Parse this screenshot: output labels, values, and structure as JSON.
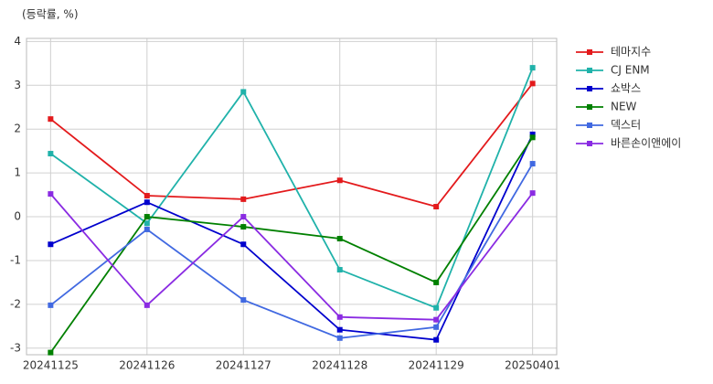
{
  "chart_data": {
    "type": "line",
    "y_label": "(등락률, %)",
    "categories": [
      "20241125",
      "20241126",
      "20241127",
      "20241128",
      "20241129",
      "20250401"
    ],
    "ylim": [
      -3.15,
      4.07
    ],
    "yticks": [
      -3,
      -2,
      -1,
      0,
      1,
      2,
      3,
      4
    ],
    "grid": true,
    "legend": "outside-right",
    "series": [
      {
        "name": "테마지수",
        "color": "#e31a1c",
        "values": [
          2.23,
          0.48,
          0.4,
          0.83,
          0.23,
          3.04
        ]
      },
      {
        "name": "CJ ENM",
        "color": "#20b2aa",
        "values": [
          1.44,
          -0.15,
          2.85,
          -1.21,
          -2.08,
          3.4
        ]
      },
      {
        "name": "쇼박스",
        "color": "#0000cd",
        "values": [
          -0.63,
          0.33,
          -0.63,
          -2.58,
          -2.81,
          1.88
        ]
      },
      {
        "name": "NEW",
        "color": "#008000",
        "values": [
          -3.1,
          0.0,
          -0.23,
          -0.5,
          -1.5,
          1.81
        ]
      },
      {
        "name": "덱스터",
        "color": "#4169e1",
        "values": [
          -2.02,
          -0.29,
          -1.9,
          -2.77,
          -2.52,
          1.21
        ]
      },
      {
        "name": "바른손이앤에이",
        "color": "#8a2be2",
        "values": [
          0.52,
          -2.02,
          0.0,
          -2.29,
          -2.35,
          0.54
        ]
      }
    ]
  }
}
